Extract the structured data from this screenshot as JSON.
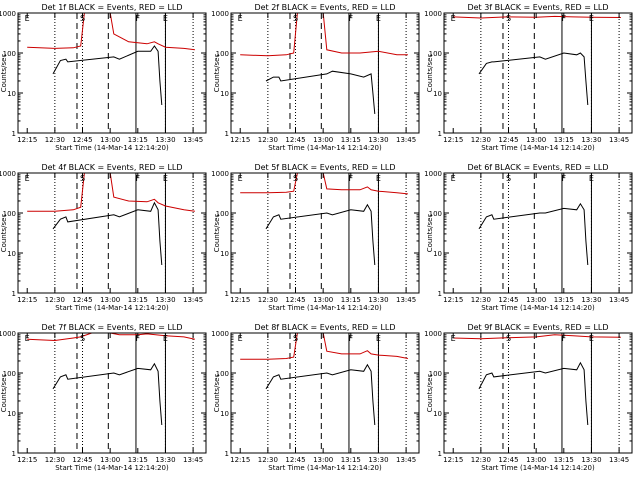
{
  "figure": {
    "background": "#ffffff",
    "events_color": "#000000",
    "lld_color": "#cc0000"
  },
  "chart_data": [
    {
      "type": "line",
      "title": "Det 1f BLACK = Events, RED = LLD",
      "xlabel": "Start Time (14-Mar-14 12:14:20)",
      "ylabel": "Counts/sec",
      "yscale": "log",
      "ylim": [
        1,
        1000
      ],
      "x_ticks": [
        "12:15",
        "12:30",
        "12:45",
        "13:00",
        "13:15",
        "13:30",
        "13:45"
      ],
      "y_ticks": [
        "1",
        "10",
        "100",
        "1000"
      ],
      "markers": {
        "labels": [
          "E",
          "S",
          "F",
          "E"
        ],
        "times": [
          "12:15",
          "12:45",
          "13:15",
          "13:30"
        ]
      },
      "dotted_lines": [
        "12:30",
        "12:45",
        "13:30",
        "13:45"
      ],
      "dashed_lines": [
        "12:42",
        "12:59"
      ],
      "solid_lines": [
        "13:14",
        "13:30"
      ],
      "series": [
        {
          "name": "LLD",
          "color": "#cc0000",
          "x": [
            "12:15",
            "12:30",
            "12:40",
            "12:44",
            "12:46",
            "13:00",
            "13:02",
            "13:10",
            "13:20",
            "13:24",
            "13:26",
            "13:30",
            "13:40",
            "13:46"
          ],
          "y": [
            140,
            130,
            135,
            150,
            1000,
            1000,
            300,
            190,
            170,
            190,
            170,
            140,
            130,
            120
          ]
        },
        {
          "name": "Events",
          "color": "#000000",
          "x": [
            "12:29",
            "12:33",
            "12:36",
            "12:37",
            "13:02",
            "13:05",
            "13:15",
            "13:22",
            "13:24",
            "13:26",
            "13:27",
            "13:28"
          ],
          "y": [
            30,
            65,
            70,
            60,
            80,
            70,
            110,
            110,
            150,
            110,
            20,
            5
          ]
        }
      ]
    },
    {
      "type": "line",
      "title": "Det 2f BLACK = Events, RED = LLD",
      "xlabel": "Start Time (14-Mar-14 12:14:20)",
      "ylabel": "Counts/sec",
      "yscale": "log",
      "ylim": [
        1,
        1000
      ],
      "x_ticks": [
        "12:15",
        "12:30",
        "12:45",
        "13:00",
        "13:15",
        "13:30",
        "13:45"
      ],
      "y_ticks": [
        "1",
        "10",
        "100",
        "1000"
      ],
      "markers": {
        "labels": [
          "E",
          "S",
          "F",
          "E"
        ],
        "times": [
          "12:15",
          "12:45",
          "13:15",
          "13:30"
        ]
      },
      "dotted_lines": [
        "12:30",
        "12:45",
        "13:30",
        "13:45"
      ],
      "dashed_lines": [
        "12:42",
        "12:59"
      ],
      "solid_lines": [
        "13:14",
        "13:30"
      ],
      "series": [
        {
          "name": "LLD",
          "color": "#cc0000",
          "x": [
            "12:15",
            "12:30",
            "12:40",
            "12:44",
            "12:46",
            "13:00",
            "13:02",
            "13:10",
            "13:20",
            "13:30",
            "13:40",
            "13:46"
          ],
          "y": [
            90,
            85,
            90,
            100,
            1000,
            1000,
            120,
            100,
            100,
            110,
            90,
            90
          ]
        },
        {
          "name": "Events",
          "color": "#000000",
          "x": [
            "12:29",
            "12:33",
            "12:36",
            "12:37",
            "13:02",
            "13:05",
            "13:15",
            "13:22",
            "13:26",
            "13:27",
            "13:28"
          ],
          "y": [
            20,
            25,
            25,
            20,
            30,
            35,
            30,
            25,
            30,
            10,
            3
          ]
        }
      ]
    },
    {
      "type": "line",
      "title": "Det 3f BLACK = Events, RED = LLD",
      "xlabel": "Start Time (14-Mar-14 12:14:20)",
      "ylabel": "Counts/sec",
      "yscale": "log",
      "ylim": [
        1,
        1000
      ],
      "x_ticks": [
        "12:15",
        "12:30",
        "12:45",
        "13:00",
        "13:15",
        "13:30",
        "13:45"
      ],
      "y_ticks": [
        "1",
        "10",
        "100",
        "1000"
      ],
      "markers": {
        "labels": [
          "E",
          "S",
          "F",
          "E"
        ],
        "times": [
          "12:15",
          "12:45",
          "13:15",
          "13:30"
        ]
      },
      "dotted_lines": [
        "12:30",
        "12:45",
        "13:30",
        "13:45"
      ],
      "dashed_lines": [
        "12:42",
        "12:59"
      ],
      "solid_lines": [
        "13:14",
        "13:30"
      ],
      "series": [
        {
          "name": "LLD",
          "color": "#cc0000",
          "x": [
            "12:15",
            "12:30",
            "12:44",
            "13:00",
            "13:10",
            "13:20",
            "13:30",
            "13:46"
          ],
          "y": [
            800,
            750,
            800,
            780,
            820,
            800,
            780,
            770
          ]
        },
        {
          "name": "Events",
          "color": "#000000",
          "x": [
            "12:29",
            "12:33",
            "12:36",
            "12:37",
            "13:02",
            "13:05",
            "13:15",
            "13:22",
            "13:24",
            "13:26",
            "13:27",
            "13:28"
          ],
          "y": [
            30,
            55,
            60,
            60,
            80,
            70,
            100,
            90,
            100,
            80,
            20,
            5
          ]
        }
      ]
    },
    {
      "type": "line",
      "title": "Det 4f BLACK = Events, RED = LLD",
      "xlabel": "Start Time (14-Mar-14 12:14:20)",
      "ylabel": "Counts/sec",
      "yscale": "log",
      "ylim": [
        1,
        1000
      ],
      "x_ticks": [
        "12:15",
        "12:30",
        "12:45",
        "13:00",
        "13:15",
        "13:30",
        "13:45"
      ],
      "y_ticks": [
        "1",
        "10",
        "100",
        "1000"
      ],
      "markers": {
        "labels": [
          "E",
          "S",
          "F",
          "E"
        ],
        "times": [
          "12:15",
          "12:45",
          "13:15",
          "13:30"
        ]
      },
      "dotted_lines": [
        "12:30",
        "12:45",
        "13:30",
        "13:45"
      ],
      "dashed_lines": [
        "12:42",
        "12:59"
      ],
      "solid_lines": [
        "13:14",
        "13:30"
      ],
      "series": [
        {
          "name": "LLD",
          "color": "#cc0000",
          "x": [
            "12:15",
            "12:30",
            "12:40",
            "12:44",
            "12:46",
            "13:00",
            "13:02",
            "13:10",
            "13:20",
            "13:24",
            "13:26",
            "13:30",
            "13:40",
            "13:46"
          ],
          "y": [
            110,
            110,
            120,
            140,
            1000,
            1000,
            250,
            200,
            190,
            220,
            180,
            150,
            120,
            110
          ]
        },
        {
          "name": "Events",
          "color": "#000000",
          "x": [
            "12:29",
            "12:33",
            "12:36",
            "12:37",
            "13:02",
            "13:05",
            "13:15",
            "13:22",
            "13:24",
            "13:26",
            "13:27",
            "13:28"
          ],
          "y": [
            40,
            70,
            80,
            60,
            90,
            80,
            120,
            110,
            180,
            120,
            20,
            5
          ]
        }
      ]
    },
    {
      "type": "line",
      "title": "Det 5f BLACK = Events, RED = LLD",
      "xlabel": "Start Time (14-Mar-14 12:14:20)",
      "ylabel": "Counts/sec",
      "yscale": "log",
      "ylim": [
        1,
        1000
      ],
      "x_ticks": [
        "12:15",
        "12:30",
        "12:45",
        "13:00",
        "13:15",
        "13:30",
        "13:45"
      ],
      "y_ticks": [
        "1",
        "10",
        "100",
        "1000"
      ],
      "markers": {
        "labels": [
          "E",
          "S",
          "F",
          "E"
        ],
        "times": [
          "12:15",
          "12:45",
          "13:15",
          "13:30"
        ]
      },
      "dotted_lines": [
        "12:30",
        "12:45",
        "13:30",
        "13:45"
      ],
      "dashed_lines": [
        "12:42",
        "12:59"
      ],
      "solid_lines": [
        "13:14",
        "13:30"
      ],
      "series": [
        {
          "name": "LLD",
          "color": "#cc0000",
          "x": [
            "12:15",
            "12:30",
            "12:40",
            "12:44",
            "12:46",
            "13:00",
            "13:02",
            "13:10",
            "13:20",
            "13:24",
            "13:26",
            "13:30",
            "13:40",
            "13:46"
          ],
          "y": [
            320,
            320,
            330,
            350,
            1000,
            1000,
            400,
            380,
            380,
            450,
            380,
            350,
            320,
            300
          ]
        },
        {
          "name": "Events",
          "color": "#000000",
          "x": [
            "12:29",
            "12:33",
            "12:36",
            "12:37",
            "13:02",
            "13:05",
            "13:15",
            "13:22",
            "13:24",
            "13:26",
            "13:27",
            "13:28"
          ],
          "y": [
            40,
            80,
            90,
            70,
            100,
            90,
            120,
            110,
            160,
            110,
            20,
            5
          ]
        }
      ]
    },
    {
      "type": "line",
      "title": "Det 6f BLACK = Events, RED = LLD",
      "xlabel": "Start Time (14-Mar-14 12:14:20)",
      "ylabel": "Counts/sec",
      "yscale": "log",
      "ylim": [
        1,
        1000
      ],
      "x_ticks": [
        "12:15",
        "12:30",
        "12:45",
        "13:00",
        "13:15",
        "13:30",
        "13:45"
      ],
      "y_ticks": [
        "1",
        "10",
        "100",
        "1000"
      ],
      "markers": {
        "labels": [
          "E",
          "S",
          "F",
          "E"
        ],
        "times": [
          "12:15",
          "12:45",
          "13:15",
          "13:30"
        ]
      },
      "dotted_lines": [
        "12:30",
        "12:45",
        "13:30",
        "13:45"
      ],
      "dashed_lines": [
        "12:42",
        "12:59"
      ],
      "solid_lines": [
        "13:14",
        "13:30"
      ],
      "series": [
        {
          "name": "Events",
          "color": "#000000",
          "x": [
            "12:29",
            "12:33",
            "12:36",
            "12:37",
            "13:02",
            "13:05",
            "13:15",
            "13:22",
            "13:24",
            "13:26",
            "13:27",
            "13:28"
          ],
          "y": [
            40,
            80,
            90,
            70,
            100,
            100,
            130,
            120,
            170,
            120,
            20,
            5
          ]
        }
      ]
    },
    {
      "type": "line",
      "title": "Det 7f BLACK = Events, RED = LLD",
      "xlabel": "Start Time (14-Mar-14 12:14:20)",
      "ylabel": "Counts/sec",
      "yscale": "log",
      "ylim": [
        1,
        1000
      ],
      "x_ticks": [
        "12:15",
        "12:30",
        "12:45",
        "13:00",
        "13:15",
        "13:30",
        "13:45"
      ],
      "y_ticks": [
        "1",
        "10",
        "100",
        "1000"
      ],
      "markers": {
        "labels": [
          "E",
          "S",
          "F",
          "E"
        ],
        "times": [
          "12:15",
          "12:45",
          "13:15",
          "13:30"
        ]
      },
      "dotted_lines": [
        "12:30",
        "12:45",
        "13:30",
        "13:45"
      ],
      "dashed_lines": [
        "12:42",
        "12:59"
      ],
      "solid_lines": [
        "13:14",
        "13:30"
      ],
      "series": [
        {
          "name": "LLD",
          "color": "#cc0000",
          "x": [
            "12:15",
            "12:30",
            "12:40",
            "12:44",
            "12:50",
            "13:00",
            "13:05",
            "13:15",
            "13:20",
            "13:30",
            "13:40",
            "13:46"
          ],
          "y": [
            700,
            650,
            750,
            800,
            1000,
            1000,
            900,
            900,
            950,
            850,
            800,
            700
          ]
        },
        {
          "name": "Events",
          "color": "#000000",
          "x": [
            "12:29",
            "12:33",
            "12:36",
            "12:37",
            "13:02",
            "13:05",
            "13:15",
            "13:22",
            "13:24",
            "13:26",
            "13:27",
            "13:28"
          ],
          "y": [
            40,
            80,
            90,
            70,
            100,
            90,
            130,
            120,
            170,
            110,
            20,
            5
          ]
        }
      ]
    },
    {
      "type": "line",
      "title": "Det 8f BLACK = Events, RED = LLD",
      "xlabel": "Start Time (14-Mar-14 12:14:20)",
      "ylabel": "Counts/sec",
      "yscale": "log",
      "ylim": [
        1,
        1000
      ],
      "x_ticks": [
        "12:15",
        "12:30",
        "12:45",
        "13:00",
        "13:15",
        "13:30",
        "13:45"
      ],
      "y_ticks": [
        "1",
        "10",
        "100",
        "1000"
      ],
      "markers": {
        "labels": [
          "E",
          "S",
          "F",
          "E"
        ],
        "times": [
          "12:15",
          "12:45",
          "13:15",
          "13:30"
        ]
      },
      "dotted_lines": [
        "12:30",
        "12:45",
        "13:30",
        "13:45"
      ],
      "dashed_lines": [
        "12:42",
        "12:59"
      ],
      "solid_lines": [
        "13:14",
        "13:30"
      ],
      "series": [
        {
          "name": "LLD",
          "color": "#cc0000",
          "x": [
            "12:15",
            "12:30",
            "12:40",
            "12:44",
            "12:46",
            "13:00",
            "13:02",
            "13:10",
            "13:20",
            "13:24",
            "13:26",
            "13:30",
            "13:40",
            "13:46"
          ],
          "y": [
            220,
            220,
            230,
            250,
            1000,
            1000,
            350,
            300,
            300,
            360,
            300,
            280,
            260,
            230
          ]
        },
        {
          "name": "Events",
          "color": "#000000",
          "x": [
            "12:29",
            "12:33",
            "12:36",
            "12:37",
            "13:02",
            "13:05",
            "13:15",
            "13:22",
            "13:24",
            "13:26",
            "13:27",
            "13:28"
          ],
          "y": [
            40,
            80,
            90,
            70,
            100,
            90,
            120,
            110,
            160,
            110,
            20,
            5
          ]
        }
      ]
    },
    {
      "type": "line",
      "title": "Det 9f BLACK = Events, RED = LLD",
      "xlabel": "Start Time (14-Mar-14 12:14:20)",
      "ylabel": "Counts/sec",
      "yscale": "log",
      "ylim": [
        1,
        1000
      ],
      "x_ticks": [
        "12:15",
        "12:30",
        "12:45",
        "13:00",
        "13:15",
        "13:30",
        "13:45"
      ],
      "y_ticks": [
        "1",
        "10",
        "100",
        "1000"
      ],
      "markers": {
        "labels": [
          "E",
          "S",
          "F",
          "E"
        ],
        "times": [
          "12:15",
          "12:45",
          "13:15",
          "13:30"
        ]
      },
      "dotted_lines": [
        "12:30",
        "12:45",
        "13:30",
        "13:45"
      ],
      "dashed_lines": [
        "12:42",
        "12:59"
      ],
      "solid_lines": [
        "13:14",
        "13:30"
      ],
      "series": [
        {
          "name": "LLD",
          "color": "#cc0000",
          "x": [
            "12:15",
            "12:30",
            "12:44",
            "13:00",
            "13:10",
            "13:20",
            "13:30",
            "13:46"
          ],
          "y": [
            750,
            720,
            760,
            800,
            900,
            850,
            800,
            780
          ]
        },
        {
          "name": "Events",
          "color": "#000000",
          "x": [
            "12:29",
            "12:33",
            "12:36",
            "12:37",
            "13:02",
            "13:05",
            "13:15",
            "13:22",
            "13:24",
            "13:26",
            "13:27",
            "13:28"
          ],
          "y": [
            40,
            90,
            100,
            80,
            110,
            100,
            130,
            120,
            180,
            120,
            20,
            5
          ]
        }
      ]
    }
  ]
}
